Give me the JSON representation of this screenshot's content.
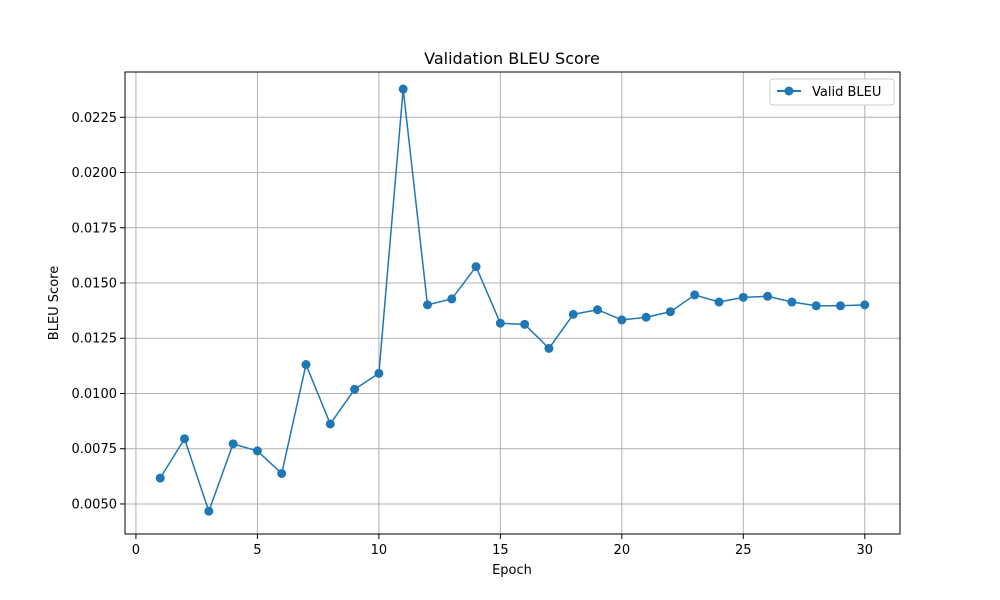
{
  "chart_data": {
    "type": "line",
    "title": "Validation BLEU Score",
    "xlabel": "Epoch",
    "ylabel": "BLEU Score",
    "xlim": [
      -0.45,
      31.45
    ],
    "ylim": [
      0.00364,
      0.02455
    ],
    "xticks": [
      0,
      5,
      10,
      15,
      20,
      25,
      30
    ],
    "xtick_labels": [
      "0",
      "5",
      "10",
      "15",
      "20",
      "25",
      "30"
    ],
    "yticks": [
      0.005,
      0.0075,
      0.01,
      0.0125,
      0.015,
      0.0175,
      0.02,
      0.0225
    ],
    "ytick_labels": [
      "0.0050",
      "0.0075",
      "0.0100",
      "0.0125",
      "0.0150",
      "0.0175",
      "0.0200",
      "0.0225"
    ],
    "grid": true,
    "legend_position": "top-right",
    "x": [
      1,
      2,
      3,
      4,
      5,
      6,
      7,
      8,
      9,
      10,
      11,
      12,
      13,
      14,
      15,
      16,
      17,
      18,
      19,
      20,
      21,
      22,
      23,
      24,
      25,
      26,
      27,
      28,
      29,
      30
    ],
    "series": [
      {
        "name": "Valid BLEU",
        "color": "#1f77b4",
        "marker": "circle",
        "values": [
          0.00617,
          0.00795,
          0.00467,
          0.00772,
          0.0074,
          0.00638,
          0.01131,
          0.00862,
          0.01019,
          0.01091,
          0.02378,
          0.01401,
          0.01428,
          0.01574,
          0.01318,
          0.01313,
          0.01204,
          0.01358,
          0.01379,
          0.01333,
          0.01345,
          0.0137,
          0.01446,
          0.01414,
          0.01435,
          0.0144,
          0.01414,
          0.01397,
          0.01397,
          0.01401
        ]
      }
    ]
  }
}
